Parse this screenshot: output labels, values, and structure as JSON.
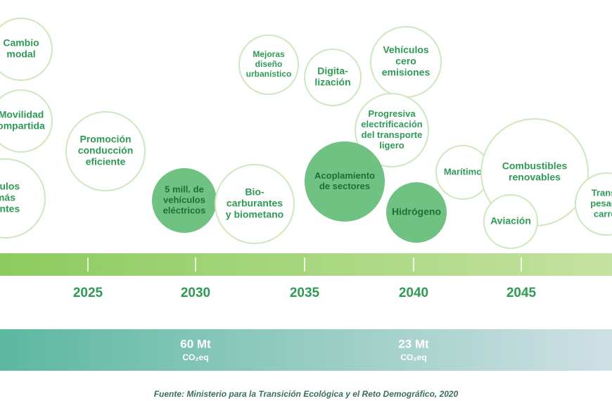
{
  "bubbles": [
    {
      "lines": [
        "Cambio",
        "modal"
      ]
    },
    {
      "lines": [
        "Movilidad",
        "ompartida"
      ]
    },
    {
      "lines": [
        "ículos",
        "más",
        "ientes"
      ]
    },
    {
      "lines": [
        "Promoción",
        "conducción",
        "eficiente"
      ]
    },
    {
      "lines": [
        "5 mill. de",
        "vehículos",
        "eléctricos"
      ]
    },
    {
      "lines": [
        "Bio-",
        "carburantes",
        "y biometano"
      ]
    },
    {
      "lines": [
        "Mejoras",
        "diseño",
        "urbanístico"
      ]
    },
    {
      "lines": [
        "Digita-",
        "lización"
      ]
    },
    {
      "lines": [
        "Vehículos",
        "cero",
        "emisiones"
      ]
    },
    {
      "lines": [
        "Progresiva",
        "electrificación",
        "del transporte",
        "ligero"
      ]
    },
    {
      "lines": [
        "Acoplamiento",
        "de sectores"
      ]
    },
    {
      "lines": [
        "Hidrógeno"
      ]
    },
    {
      "lines": [
        "Marítimo"
      ]
    },
    {
      "lines": [
        "Combustibles",
        "renovables"
      ]
    },
    {
      "lines": [
        "Aviación"
      ]
    },
    {
      "lines": [
        "Transp",
        "pesado",
        "carret"
      ]
    }
  ],
  "timeline": {
    "years": [
      "2025",
      "2030",
      "2035",
      "2040",
      "2045"
    ]
  },
  "emissions": [
    {
      "amount": "60 Mt",
      "unit": "CO₂eq"
    },
    {
      "amount": "23 Mt",
      "unit": "CO₂eq"
    }
  ],
  "footer": "Fuente:  Ministerio para la Transición Ecológica y el Reto Demográfico, 2020"
}
